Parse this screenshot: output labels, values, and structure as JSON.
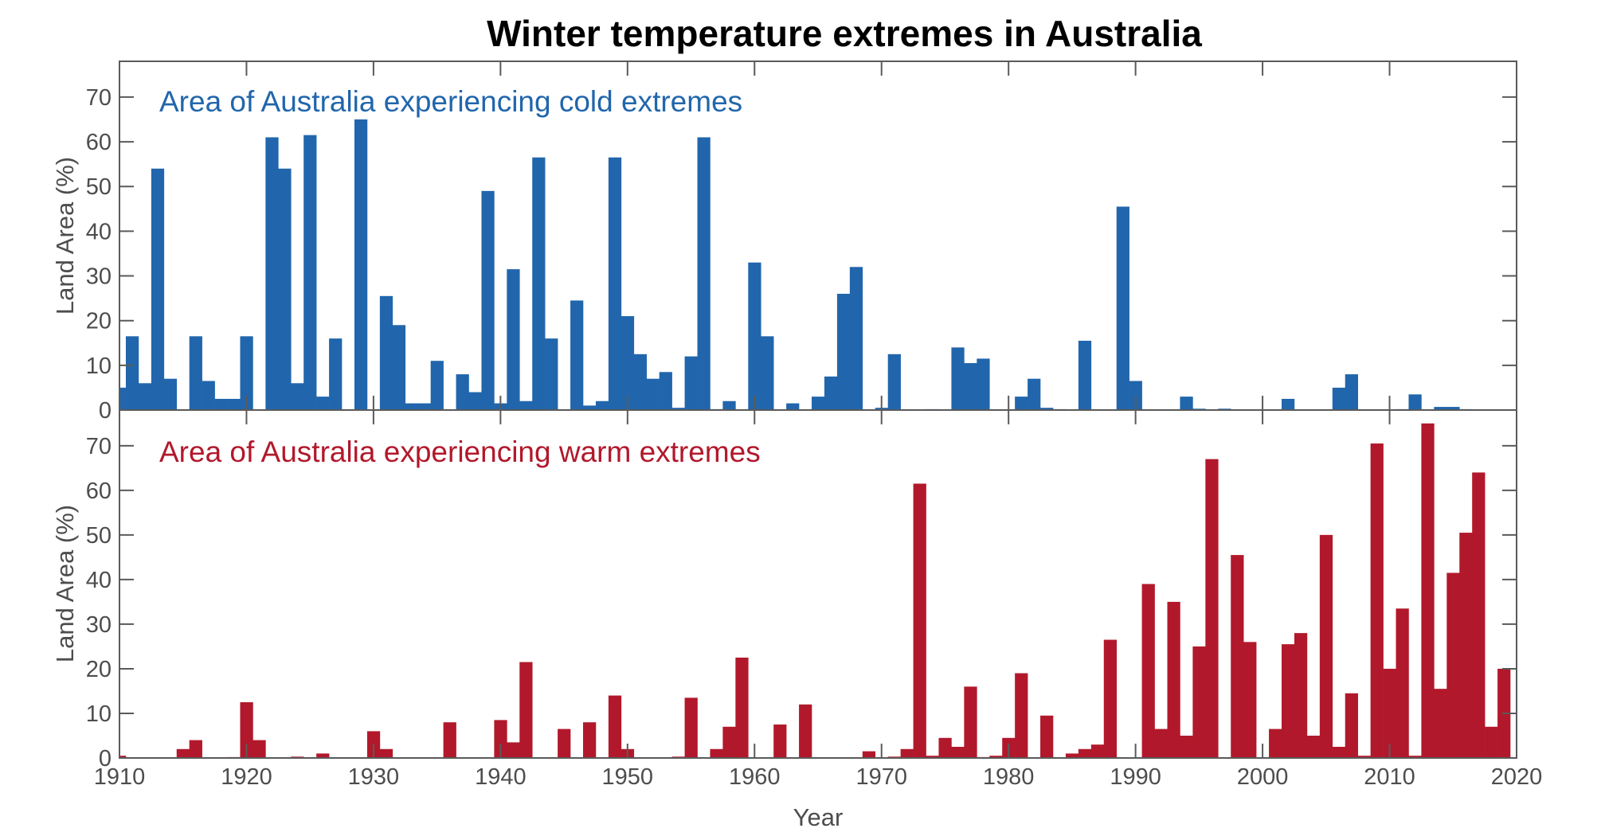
{
  "chart_data": [
    {
      "type": "bar",
      "title": "Winter temperature extremes in Australia",
      "annotation": "Area of Australia experiencing cold extremes",
      "ylabel": "Land Area (%)",
      "xlabel": "",
      "color": "#2166ac",
      "xlim": [
        1910,
        2020
      ],
      "ylim": [
        0,
        78
      ],
      "yticks": [
        0,
        10,
        20,
        30,
        40,
        50,
        60,
        70
      ],
      "x_start": 1910,
      "values": [
        5,
        16.5,
        6,
        54,
        7,
        0,
        16.5,
        6.5,
        2.5,
        2.5,
        16.5,
        0,
        61,
        54,
        6,
        61.5,
        3,
        16,
        0,
        65,
        0,
        25.5,
        19,
        1.5,
        1.5,
        11,
        0,
        8,
        4,
        49,
        1.5,
        31.5,
        2,
        56.5,
        16,
        0,
        24.5,
        1,
        2,
        56.5,
        21,
        12.5,
        7,
        8.5,
        0.5,
        12,
        61,
        0.2,
        2,
        0,
        33,
        16.5,
        0,
        1.5,
        0,
        3,
        7.5,
        26,
        32,
        0,
        0.5,
        12.5,
        0,
        0,
        0.2,
        0,
        14,
        10.5,
        11.5,
        0,
        0,
        3,
        7,
        0.5,
        0.2,
        0,
        15.5,
        0,
        0,
        45.5,
        6.5,
        0,
        0,
        0,
        3,
        0.3,
        0,
        0.3,
        0,
        0,
        0,
        0,
        2.5,
        0,
        0,
        0,
        5,
        8,
        0,
        0,
        0,
        0.2,
        3.5,
        0,
        0.7,
        0.7,
        0.2,
        0,
        0,
        0
      ]
    },
    {
      "type": "bar",
      "annotation": "Area of Australia experiencing warm extremes",
      "ylabel": "Land Area (%)",
      "xlabel": "Year",
      "color": "#b2182b",
      "xlim": [
        1910,
        2020
      ],
      "ylim": [
        0,
        78
      ],
      "yticks": [
        0,
        10,
        20,
        30,
        40,
        50,
        60,
        70
      ],
      "xticks": [
        1910,
        1920,
        1930,
        1940,
        1950,
        1960,
        1970,
        1980,
        1990,
        2000,
        2010,
        2020
      ],
      "x_start": 1910,
      "values": [
        0.5,
        0,
        0,
        0,
        0,
        2,
        4,
        0,
        0,
        0.2,
        12.5,
        4,
        0,
        0,
        0.3,
        0,
        1,
        0,
        0,
        0,
        6,
        2,
        0,
        0,
        0,
        0,
        8,
        0,
        0,
        0,
        8.5,
        3.5,
        21.5,
        0,
        0,
        6.5,
        0,
        8,
        0,
        14,
        2,
        0,
        0,
        0,
        0.3,
        13.5,
        0,
        2,
        7,
        22.5,
        0,
        0,
        7.5,
        0,
        12,
        0,
        0,
        0,
        0,
        1.5,
        0,
        0.3,
        2,
        61.5,
        0.5,
        4.5,
        2.5,
        16,
        0.2,
        0.5,
        4.5,
        19,
        0,
        9.5,
        0,
        1,
        2,
        3,
        26.5,
        0,
        0,
        39,
        6.5,
        35,
        5,
        25,
        67,
        0,
        45.5,
        26,
        0,
        6.5,
        25.5,
        28,
        5,
        50,
        2.5,
        14.5,
        0.5,
        70.5,
        20,
        33.5,
        0.5,
        75,
        15.5,
        41.5,
        50.5,
        64,
        7,
        20
      ]
    }
  ]
}
